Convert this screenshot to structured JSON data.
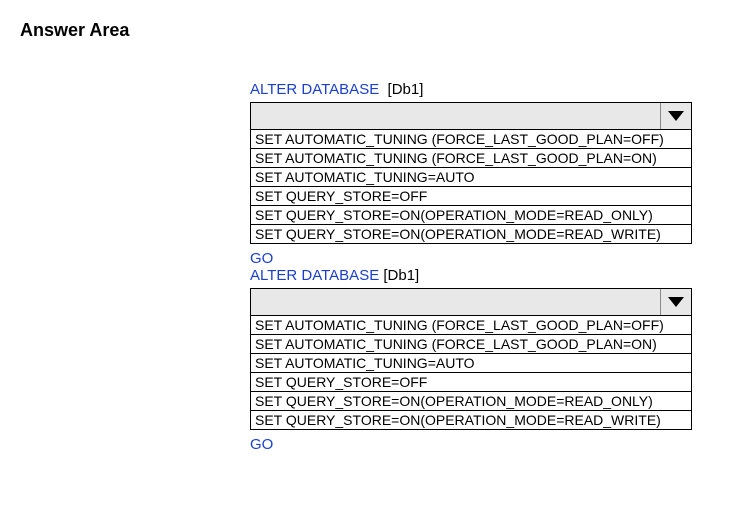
{
  "heading": "Answer Area",
  "blocks": [
    {
      "alter_keyword": "ALTER DATABASE",
      "db_name": "[Db1]",
      "options": [
        "SET AUTOMATIC_TUNING (FORCE_LAST_GOOD_PLAN=OFF)",
        "SET AUTOMATIC_TUNING (FORCE_LAST_GOOD_PLAN=ON)",
        "SET AUTOMATIC_TUNING=AUTO",
        "SET QUERY_STORE=OFF",
        "SET QUERY_STORE=ON(OPERATION_MODE=READ_ONLY)",
        "SET QUERY_STORE=ON(OPERATION_MODE=READ_WRITE)"
      ],
      "go": "GO"
    },
    {
      "alter_keyword": "ALTER DATABASE",
      "db_name": "[Db1]",
      "options": [
        "SET AUTOMATIC_TUNING (FORCE_LAST_GOOD_PLAN=OFF)",
        "SET AUTOMATIC_TUNING (FORCE_LAST_GOOD_PLAN=ON)",
        "SET AUTOMATIC_TUNING=AUTO",
        "SET QUERY_STORE=OFF",
        "SET QUERY_STORE=ON(OPERATION_MODE=READ_ONLY)",
        "SET QUERY_STORE=ON(OPERATION_MODE=READ_WRITE)"
      ],
      "go": "GO"
    }
  ]
}
